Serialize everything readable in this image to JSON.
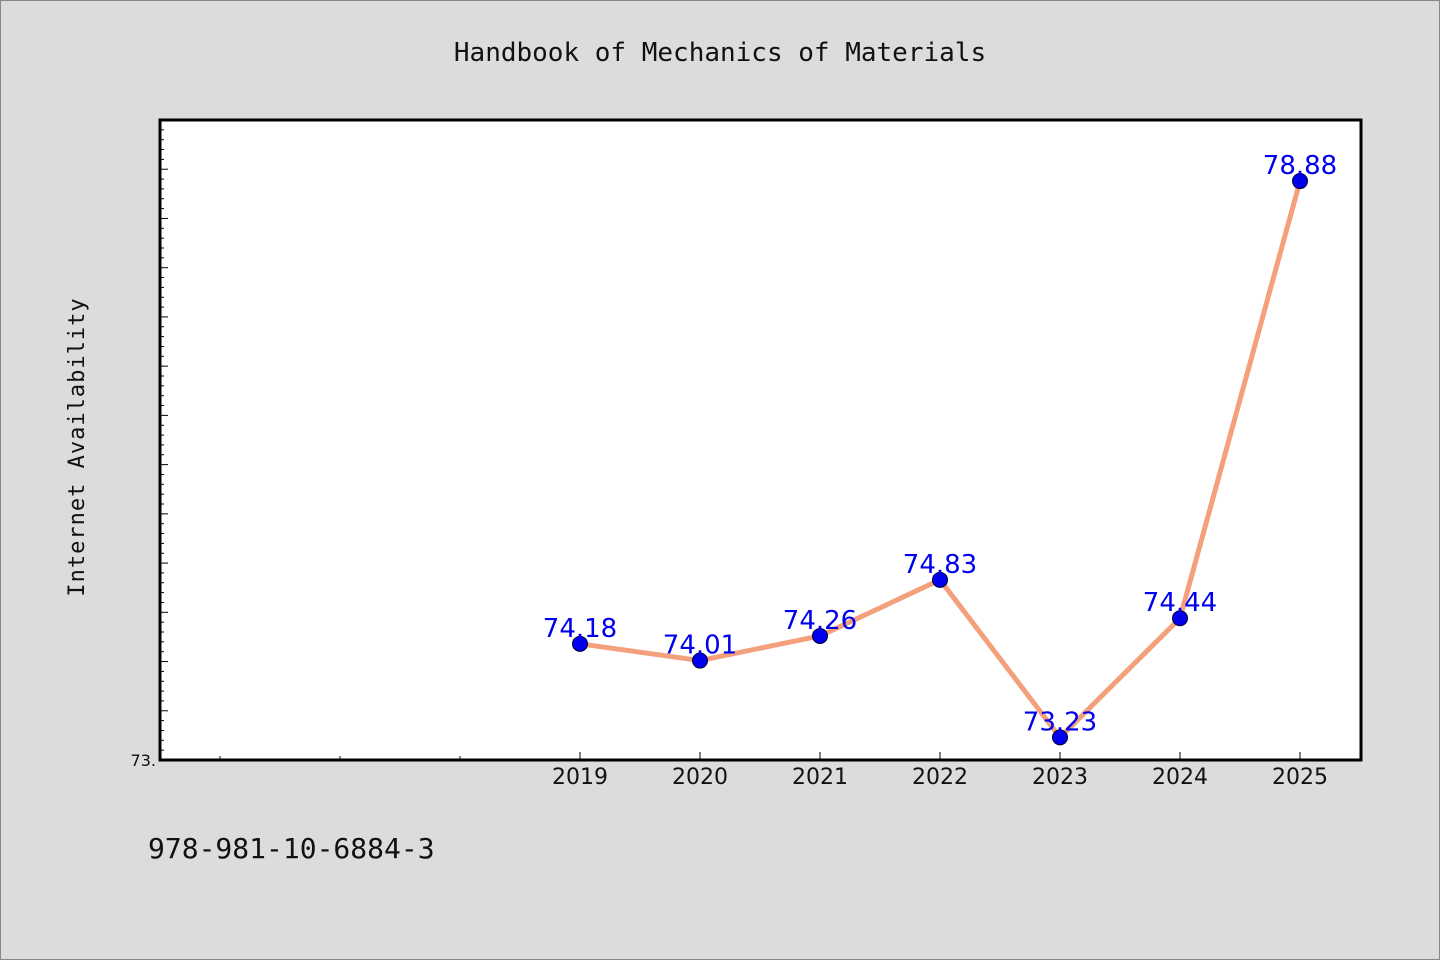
{
  "chart_data": {
    "type": "line",
    "title": "Handbook of Mechanics of Materials",
    "xlabel": "",
    "ylabel": "Internet Availability",
    "categories": [
      "2019",
      "2020",
      "2021",
      "2022",
      "2023",
      "2024",
      "2025"
    ],
    "series": [
      {
        "values": [
          74.18,
          74.01,
          74.26,
          74.83,
          73.23,
          74.44,
          78.88
        ]
      }
    ],
    "data_labels": [
      "74.18",
      "74.01",
      "74.26",
      "74.83",
      "73.23",
      "74.44",
      "78.88"
    ],
    "ylim": [
      73.0,
      79.5
    ],
    "y_tick_label": "73.",
    "grid": false,
    "legend": "none",
    "colors": {
      "line": "#f4a07c",
      "marker": "#0000ee",
      "data_label": "#0000ee",
      "plot_bg": "#ffffff",
      "page_bg": "#dcdcdc"
    }
  },
  "footer": {
    "code": "978-981-10-6884-3"
  }
}
